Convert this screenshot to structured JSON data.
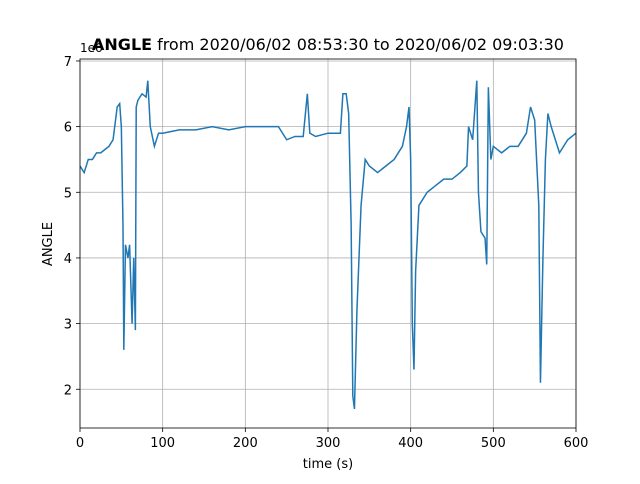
{
  "chart_data": {
    "type": "line",
    "title_bold": "ANGLE",
    "title": "from 2020/06/02 08:53:30 to 2020/06/02 09:03:30",
    "x_label": "time (s)",
    "y_label": "ANGLE",
    "y_offset_label": "1e6",
    "xlim": [
      0,
      600
    ],
    "xticks": [
      0,
      100,
      200,
      300,
      400,
      500,
      600
    ],
    "ylim": [
      1.41,
      7.03
    ],
    "yticks": [
      2,
      3,
      4,
      5,
      6,
      7
    ],
    "grid": true,
    "series": [
      {
        "name": "ANGLE",
        "color": "#1f77b4",
        "x": [
          0,
          5,
          10,
          15,
          20,
          25,
          30,
          35,
          40,
          45,
          48,
          50,
          52,
          53,
          55,
          58,
          60,
          63,
          65,
          67,
          68,
          70,
          75,
          80,
          82,
          85,
          90,
          95,
          100,
          120,
          140,
          160,
          180,
          200,
          220,
          240,
          250,
          260,
          270,
          275,
          278,
          285,
          300,
          315,
          318,
          322,
          325,
          328,
          330,
          332,
          335,
          340,
          345,
          350,
          360,
          370,
          380,
          390,
          395,
          398,
          400,
          402,
          404,
          406,
          410,
          420,
          430,
          440,
          450,
          460,
          468,
          470,
          475,
          480,
          482,
          485,
          490,
          492,
          494,
          497,
          500,
          510,
          520,
          530,
          540,
          545,
          550,
          555,
          557,
          560,
          563,
          566,
          570,
          575,
          580,
          590,
          600
        ],
        "values": [
          5.4,
          5.3,
          5.5,
          5.5,
          5.6,
          5.6,
          5.65,
          5.7,
          5.8,
          6.3,
          6.35,
          6.0,
          4.5,
          2.6,
          4.2,
          4.0,
          4.2,
          3.0,
          4.0,
          2.9,
          6.3,
          6.4,
          6.5,
          6.45,
          6.7,
          6.0,
          5.7,
          5.9,
          5.9,
          5.95,
          5.95,
          6.0,
          5.95,
          6.0,
          6.0,
          6.0,
          5.8,
          5.85,
          5.85,
          6.5,
          5.9,
          5.85,
          5.9,
          5.9,
          6.5,
          6.5,
          6.2,
          4.5,
          1.9,
          1.7,
          3.2,
          4.8,
          5.5,
          5.4,
          5.3,
          5.4,
          5.5,
          5.7,
          6.0,
          6.3,
          5.5,
          3.0,
          2.3,
          3.8,
          4.8,
          5.0,
          5.1,
          5.2,
          5.2,
          5.3,
          5.4,
          6.0,
          5.8,
          6.7,
          5.0,
          4.4,
          4.3,
          3.9,
          6.6,
          5.5,
          5.7,
          5.6,
          5.7,
          5.7,
          5.9,
          6.3,
          6.1,
          4.8,
          2.1,
          4.0,
          5.5,
          6.2,
          6.0,
          5.8,
          5.6,
          5.8,
          5.9
        ]
      }
    ]
  }
}
